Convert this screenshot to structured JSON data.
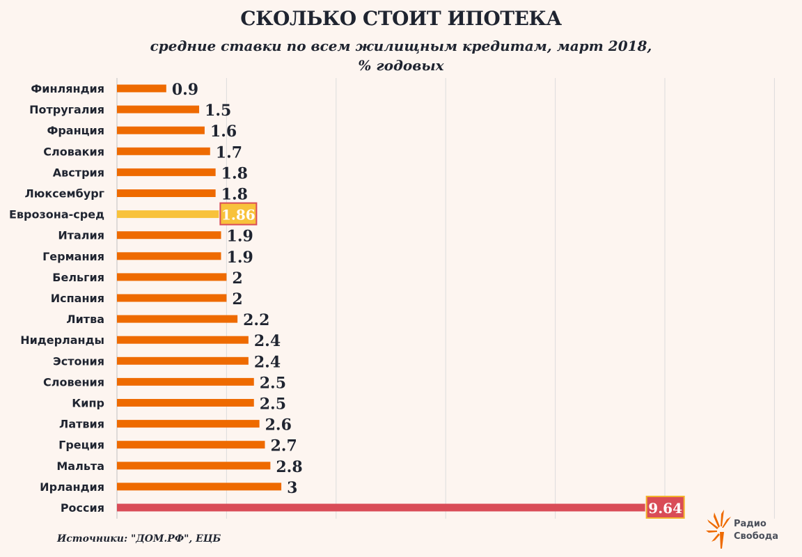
{
  "chart_data": {
    "type": "bar",
    "orientation": "horizontal",
    "title": "СКОЛЬКО СТОИТ ИПОТЕКА",
    "subtitle_line1": "средние ставки по всем жилищным кредитам, март 2018,",
    "subtitle_line2": "% годовых",
    "categories": [
      "Финляндия",
      "Потругалия",
      "Франция",
      "Словакия",
      "Австрия",
      "Люксембург",
      "Еврозона-сред",
      "Италия",
      "Германия",
      "Бельгия",
      "Испания",
      "Литва",
      "Нидерланды",
      "Эстония",
      "Словения",
      "Кипр",
      "Латвия",
      "Греция",
      "Мальта",
      "Ирландия",
      "Россия"
    ],
    "labels": [
      "0.9",
      "1.5",
      "1.6",
      "1.7",
      "1.8",
      "1.8",
      "1.86",
      "1.9",
      "1.9",
      "2",
      "2",
      "2.2",
      "2.4",
      "2.4",
      "2.5",
      "2.5",
      "2.6",
      "2.7",
      "2.8",
      "3",
      "9.64"
    ],
    "values": [
      0.9,
      1.5,
      1.6,
      1.7,
      1.8,
      1.8,
      1.86,
      1.9,
      1.9,
      2,
      2,
      2.2,
      2.4,
      2.4,
      2.5,
      2.5,
      2.6,
      2.7,
      2.8,
      3,
      9.64
    ],
    "highlight": {
      "Еврозона-сред": "eurozone",
      "Россия": "russia"
    },
    "xlim": [
      0,
      12
    ],
    "grid": true,
    "xlabel": "",
    "ylabel": ""
  },
  "colors": {
    "bar": "#ee6a00",
    "eurozone": "#f8c23b",
    "russia": "#d94c57",
    "grid": "#dcdcdc",
    "background": "#fdf5f0"
  },
  "source": "Источники: \"ДОМ.РФ\", ЕЦБ",
  "logo": {
    "icon": "radio-svoboda-torch-icon",
    "line1": "Радио",
    "line2": "Свобода"
  }
}
